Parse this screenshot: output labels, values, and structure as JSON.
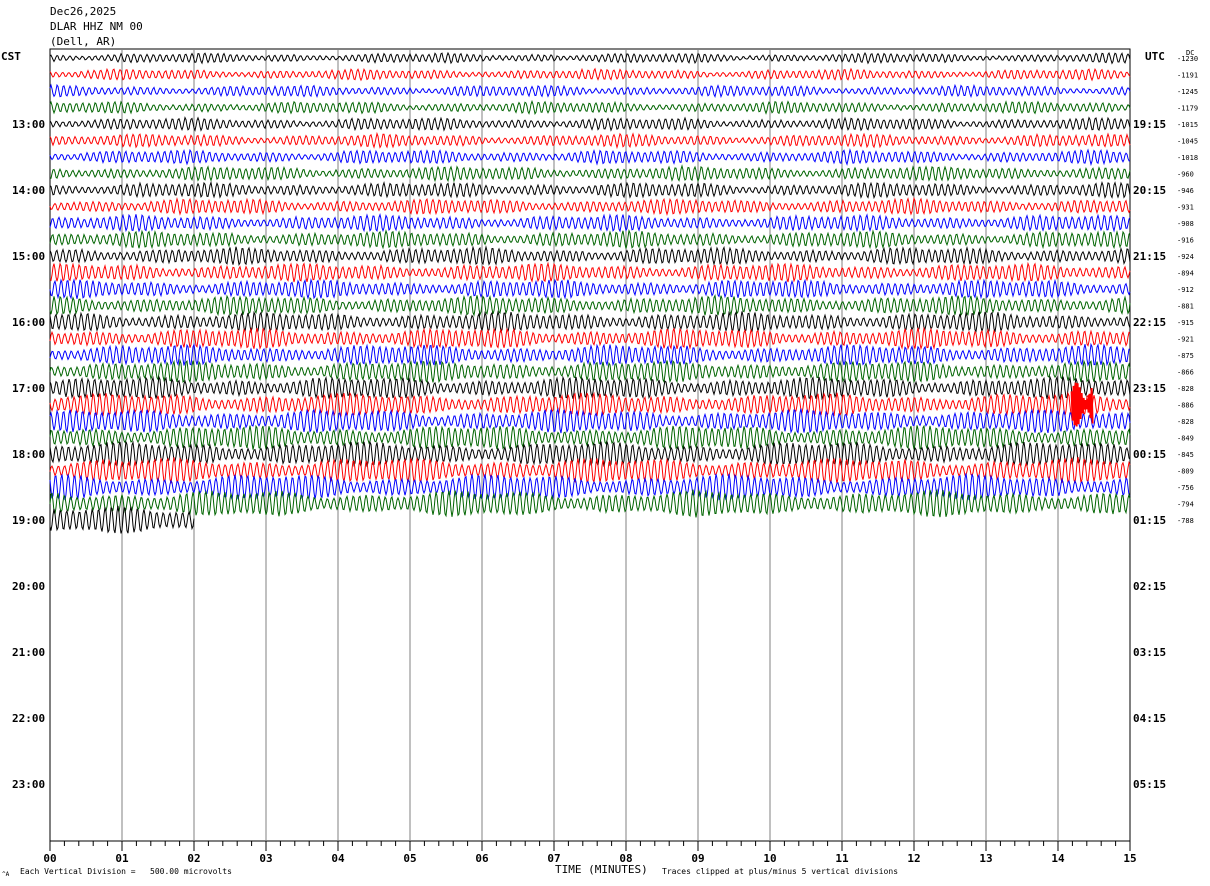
{
  "header": {
    "date": "Dec26,2025",
    "station": "DLAR HHZ NM 00",
    "location": "(Dell, AR)"
  },
  "left_axis_label": "CST",
  "right_axis_label": "UTC",
  "dc_label": "DC",
  "footer": {
    "division": "Each Vertical Division =   500.00 microvolts",
    "xlabel": "TIME (MINUTES)",
    "clip_note": "Traces clipped at plus/minus 5 vertical divisions",
    "corner_mark": "^A"
  },
  "chart_data": {
    "type": "line",
    "title": "",
    "xlabel": "TIME (MINUTES)",
    "xlim": [
      0,
      15
    ],
    "x_ticks": [
      "00",
      "01",
      "02",
      "03",
      "04",
      "05",
      "06",
      "07",
      "08",
      "09",
      "10",
      "11",
      "12",
      "13",
      "14",
      "15"
    ],
    "left_hour_labels": [
      "13:00",
      "14:00",
      "15:00",
      "16:00",
      "17:00",
      "18:00",
      "19:00",
      "20:00",
      "21:00",
      "22:00",
      "23:00"
    ],
    "right_hour_labels": [
      "19:15",
      "20:15",
      "21:15",
      "22:15",
      "23:15",
      "00:15",
      "01:15",
      "02:15",
      "03:15",
      "04:15",
      "05:15"
    ],
    "lines_per_hour": 4,
    "total_rows": 48,
    "recorded_rows": 29,
    "last_row_minutes": 2,
    "trace_colors": [
      "#000000",
      "#ff0000",
      "#0000ff",
      "#006400"
    ],
    "dc_offsets": [
      -1230,
      -1191,
      -1245,
      -1179,
      -1015,
      -1045,
      -1018,
      -960,
      -946,
      -931,
      -908,
      -916,
      -924,
      -894,
      -912,
      -881,
      -915,
      -921,
      -875,
      -866,
      -828,
      -886,
      -828,
      -849,
      -845,
      -809,
      -756,
      -794,
      -788
    ],
    "event": {
      "row": 21,
      "minute": 14.3,
      "color": "#ff0000"
    }
  }
}
